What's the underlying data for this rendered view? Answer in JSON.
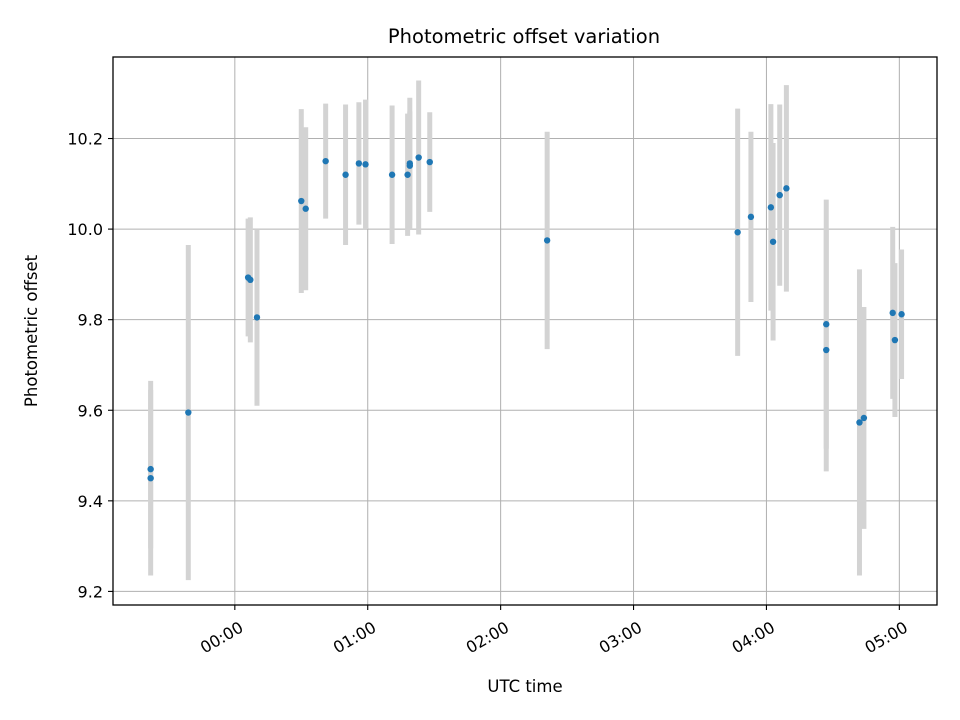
{
  "chart_data": {
    "type": "scatter",
    "title": "Photometric offset variation",
    "xlabel": "UTC time",
    "ylabel": "Photometric offset",
    "x_unit": "UTC time (HH:MM)",
    "xlim": [
      "-00:55",
      "05:17"
    ],
    "ylim": [
      9.17,
      10.38
    ],
    "x_ticks": [
      "00:00",
      "01:00",
      "02:00",
      "03:00",
      "04:00",
      "05:00"
    ],
    "y_ticks": [
      9.2,
      9.4,
      9.6,
      9.8,
      10.0,
      10.2
    ],
    "y_tick_labels": [
      "9.2",
      "9.4",
      "9.6",
      "9.8",
      "10.0",
      "10.2"
    ],
    "grid": true,
    "legend": "none",
    "series": [
      {
        "marker_color": "#1f77b4",
        "errorbar_color": "#d3d3d3",
        "points": [
          {
            "x": "-00:38",
            "y": 9.47,
            "err": 0.175
          },
          {
            "x": "-00:38",
            "y": 9.45,
            "err": 0.215
          },
          {
            "x": "-00:21",
            "y": 9.595,
            "err": 0.37
          },
          {
            "x": "00:06",
            "y": 9.893,
            "err": 0.13
          },
          {
            "x": "00:07",
            "y": 9.888,
            "err": 0.138
          },
          {
            "x": "00:10",
            "y": 9.805,
            "err": 0.195
          },
          {
            "x": "00:30",
            "y": 10.062,
            "err": 0.203
          },
          {
            "x": "00:32",
            "y": 10.045,
            "err": 0.18
          },
          {
            "x": "00:41",
            "y": 10.15,
            "err": 0.127
          },
          {
            "x": "00:50",
            "y": 10.12,
            "err": 0.155
          },
          {
            "x": "00:56",
            "y": 10.145,
            "err": 0.135
          },
          {
            "x": "00:59",
            "y": 10.143,
            "err": 0.143
          },
          {
            "x": "01:11",
            "y": 10.12,
            "err": 0.153
          },
          {
            "x": "01:18",
            "y": 10.12,
            "err": 0.135
          },
          {
            "x": "01:19",
            "y": 10.145,
            "err": 0.145
          },
          {
            "x": "01:19",
            "y": 10.14,
            "err": 0.12
          },
          {
            "x": "01:23",
            "y": 10.158,
            "err": 0.17
          },
          {
            "x": "01:28",
            "y": 10.148,
            "err": 0.11
          },
          {
            "x": "02:21",
            "y": 9.975,
            "err": 0.24
          },
          {
            "x": "03:47",
            "y": 9.993,
            "err": 0.273
          },
          {
            "x": "03:53",
            "y": 10.027,
            "err": 0.188
          },
          {
            "x": "04:02",
            "y": 10.048,
            "err": 0.228
          },
          {
            "x": "04:03",
            "y": 9.972,
            "err": 0.218
          },
          {
            "x": "04:06",
            "y": 10.075,
            "err": 0.2
          },
          {
            "x": "04:09",
            "y": 10.09,
            "err": 0.228
          },
          {
            "x": "04:27",
            "y": 9.79,
            "err": 0.275
          },
          {
            "x": "04:27",
            "y": 9.733,
            "err": 0.268
          },
          {
            "x": "04:42",
            "y": 9.573,
            "err": 0.338
          },
          {
            "x": "04:44",
            "y": 9.583,
            "err": 0.245
          },
          {
            "x": "04:57",
            "y": 9.815,
            "err": 0.19
          },
          {
            "x": "04:58",
            "y": 9.755,
            "err": 0.17
          },
          {
            "x": "05:01",
            "y": 9.812,
            "err": 0.143
          }
        ]
      }
    ]
  }
}
